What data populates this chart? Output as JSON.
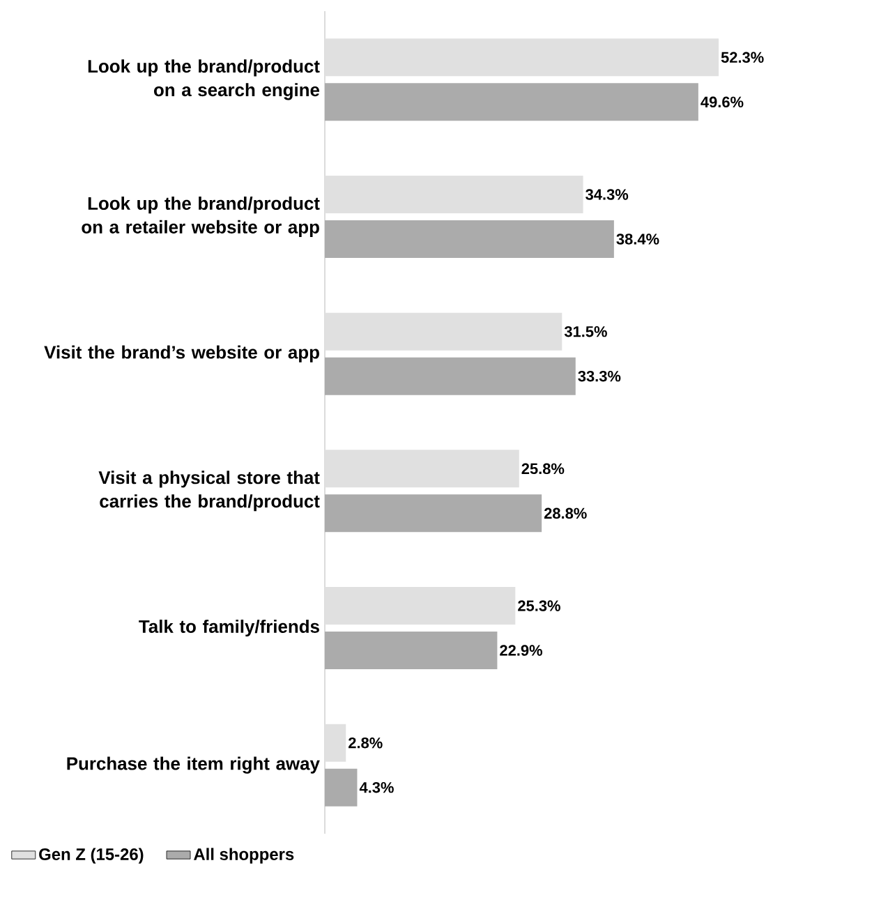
{
  "chart_data": {
    "type": "bar",
    "orientation": "horizontal",
    "legend": "bottom left",
    "categories": [
      "Look up the brand/product on a search engine",
      "Look up the brand/product on a retailer website or app",
      "Visit the brand’s website or app",
      "Visit a physical store that carries the brand/product",
      "Talk to family/friends",
      "Purchase the item right away"
    ],
    "series": [
      {
        "name": "Gen Z (15-26)",
        "color": "#e0e0e0",
        "values": [
          52.3,
          34.3,
          31.5,
          25.8,
          25.3,
          2.8
        ],
        "value_labels": [
          "52.3%",
          "34.3%",
          "31.5%",
          "25.8%",
          "25.3%",
          "2.8%"
        ]
      },
      {
        "name": "All shoppers",
        "color": "#ababab",
        "values": [
          49.6,
          38.4,
          33.3,
          28.8,
          22.9,
          4.3
        ],
        "value_labels": [
          "49.6%",
          "38.4%",
          "33.3%",
          "28.8%",
          "22.9%",
          "4.3%"
        ]
      }
    ]
  }
}
